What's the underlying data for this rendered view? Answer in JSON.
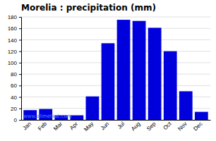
{
  "chart_data": {
    "type": "bar",
    "title": "Morelia : precipitation (mm)",
    "categories": [
      "Jan",
      "Feb",
      "Mar",
      "Apr",
      "May",
      "Jun",
      "Jul",
      "Aug",
      "Sep",
      "Oct",
      "Nov",
      "Dec"
    ],
    "values": [
      17,
      19,
      8,
      8,
      41,
      134,
      175,
      173,
      161,
      120,
      50,
      14
    ],
    "color": "#0000dd",
    "ylim": [
      0,
      180
    ],
    "yticks": [
      0,
      20,
      40,
      60,
      80,
      100,
      120,
      140,
      160,
      180
    ],
    "grid": true,
    "annotations": [
      "www.allmetsat.com"
    ]
  }
}
